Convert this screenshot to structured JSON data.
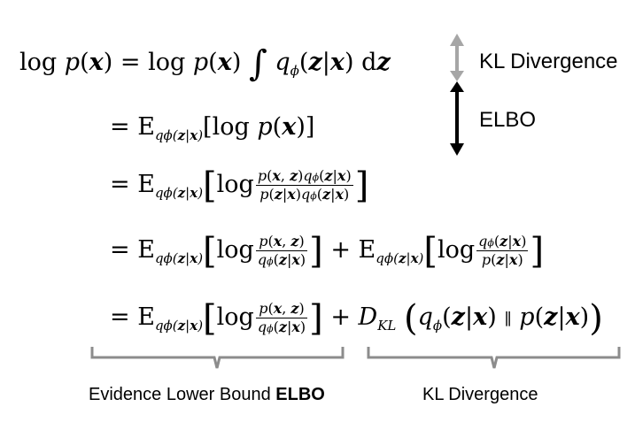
{
  "equation": {
    "line1": {
      "lhs_log": "log",
      "p": "p",
      "x": "x",
      "eq": "=",
      "rhs_log": "log",
      "integral": "∫",
      "q": "q",
      "phi": "ϕ",
      "z": "z",
      "bar": "|",
      "d": "d"
    },
    "E": "E",
    "log": "log",
    "plus": "+",
    "dkl": "D",
    "dkl_sub": "KL",
    "parallel": "∥",
    "comma": ","
  },
  "annotations": {
    "kl_divergence_top": "KL Divergence",
    "elbo_top": "ELBO",
    "evidence_lower_bound": "Evidence Lower Bound",
    "elbo_bold": "ELBO",
    "kl_divergence_bottom": "KL Divergence"
  },
  "colors": {
    "gray_arrow": "#a6a6a6",
    "black_arrow": "#000000",
    "brace": "#8c8c8c"
  }
}
